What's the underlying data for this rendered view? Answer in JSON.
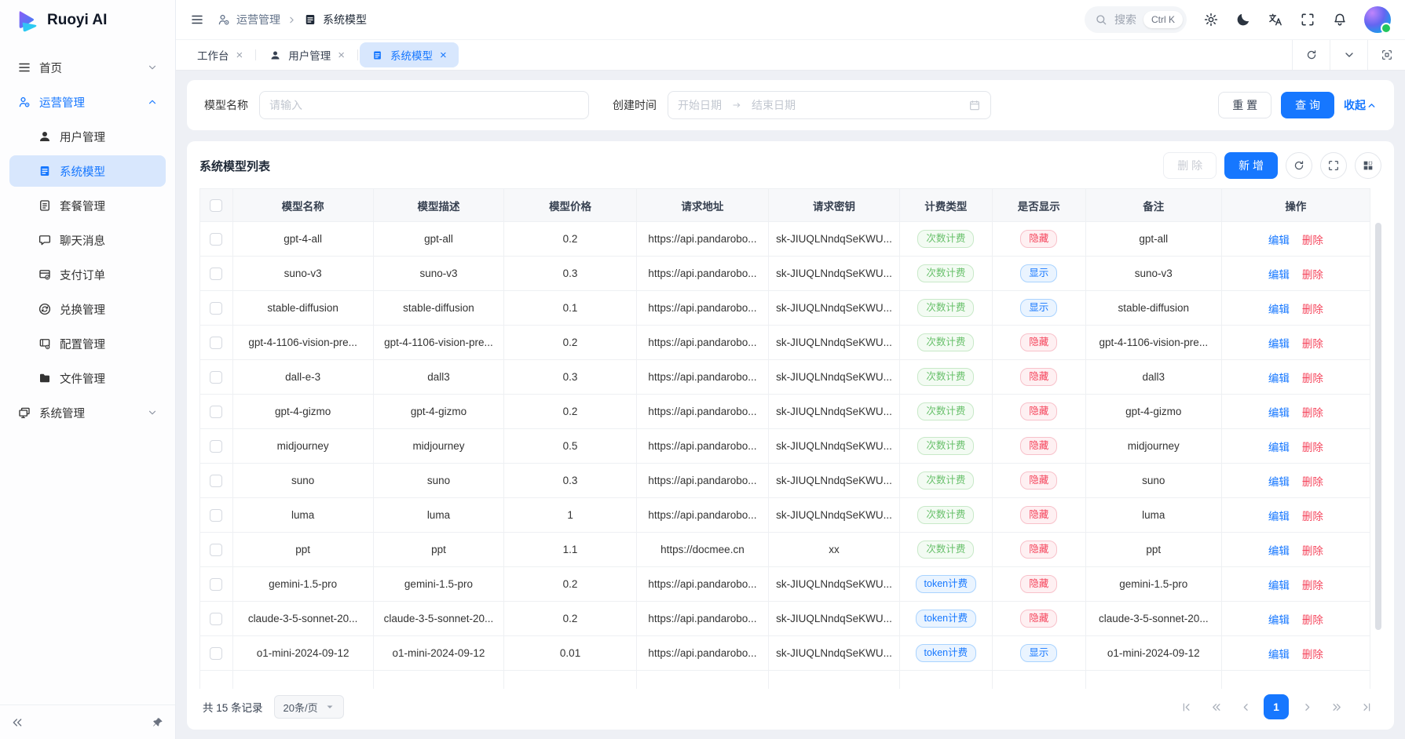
{
  "app": {
    "brand": "Ruoyi AI"
  },
  "colors": {
    "primary": "#1677ff",
    "badge_green": "#67c06a",
    "badge_red": "#f5465d",
    "active_bg": "#d8e7fd"
  },
  "header": {
    "breadcrumb": [
      {
        "icon": "user-gear",
        "label": "运营管理"
      },
      {
        "icon": "doc-fill",
        "label": "系统模型"
      }
    ],
    "search": {
      "placeholder": "搜索",
      "shortcut": "Ctrl K"
    },
    "actions": [
      "gear",
      "moon",
      "translate",
      "expand",
      "bell"
    ]
  },
  "tabs": {
    "items": [
      {
        "label": "工作台",
        "icon": null,
        "active": false
      },
      {
        "label": "用户管理",
        "icon": "person",
        "active": false
      },
      {
        "label": "系统模型",
        "icon": "doc-fill",
        "active": true
      }
    ],
    "close_glyph": "×",
    "controls": [
      "refresh",
      "chev-down",
      "focus"
    ]
  },
  "sidebar": {
    "items": [
      {
        "label": "首页",
        "icon": "hamburger",
        "chevron": "down",
        "children": []
      },
      {
        "label": "运营管理",
        "icon": "user-gear",
        "chevron": "up",
        "open": true,
        "children": [
          {
            "label": "用户管理",
            "icon": "person",
            "active": false
          },
          {
            "label": "系统模型",
            "icon": "doc-fill",
            "active": true
          },
          {
            "label": "套餐管理",
            "icon": "doc-lines",
            "active": false
          },
          {
            "label": "聊天消息",
            "icon": "chat",
            "active": false
          },
          {
            "label": "支付订单",
            "icon": "receipt",
            "active": false
          },
          {
            "label": "兑换管理",
            "icon": "exchange",
            "active": false
          },
          {
            "label": "配置管理",
            "icon": "doc-gear",
            "active": false
          },
          {
            "label": "文件管理",
            "icon": "folder",
            "active": false
          }
        ]
      },
      {
        "label": "系统管理",
        "icon": "monitor",
        "chevron": "down",
        "children": []
      }
    ],
    "footer_icons": [
      "double-left",
      "pin"
    ]
  },
  "filter": {
    "model_name_label": "模型名称",
    "model_name_placeholder": "请输入",
    "create_time_label": "创建时间",
    "start_placeholder": "开始日期",
    "end_placeholder": "结束日期",
    "reset_label": "重 置",
    "search_label": "查 询",
    "collapse_label": "收起"
  },
  "table_card": {
    "title": "系统模型列表",
    "delete_label": "删 除",
    "add_label": "新 增",
    "tool_icons": [
      "refresh",
      "expand",
      "grid"
    ]
  },
  "table": {
    "columns": [
      "模型名称",
      "模型描述",
      "模型价格",
      "请求地址",
      "请求密钥",
      "计费类型",
      "是否显示",
      "备注",
      "操作"
    ],
    "edit_label": "编辑",
    "delete_label": "删除",
    "rows": [
      {
        "name": "gpt-4-all",
        "desc": "gpt-all",
        "price": "0.2",
        "url": "https://api.pandarobo...",
        "key": "sk-JIUQLNndqSeKWU...",
        "billing": "次数计费",
        "billing_type": "count",
        "visible": "隐藏",
        "visible_type": "hidden",
        "remark": "gpt-all"
      },
      {
        "name": "suno-v3",
        "desc": "suno-v3",
        "price": "0.3",
        "url": "https://api.pandarobo...",
        "key": "sk-JIUQLNndqSeKWU...",
        "billing": "次数计费",
        "billing_type": "count",
        "visible": "显示",
        "visible_type": "shown",
        "remark": "suno-v3"
      },
      {
        "name": "stable-diffusion",
        "desc": "stable-diffusion",
        "price": "0.1",
        "url": "https://api.pandarobo...",
        "key": "sk-JIUQLNndqSeKWU...",
        "billing": "次数计费",
        "billing_type": "count",
        "visible": "显示",
        "visible_type": "shown",
        "remark": "stable-diffusion"
      },
      {
        "name": "gpt-4-1106-vision-pre...",
        "desc": "gpt-4-1106-vision-pre...",
        "price": "0.2",
        "url": "https://api.pandarobo...",
        "key": "sk-JIUQLNndqSeKWU...",
        "billing": "次数计费",
        "billing_type": "count",
        "visible": "隐藏",
        "visible_type": "hidden",
        "remark": "gpt-4-1106-vision-pre..."
      },
      {
        "name": "dall-e-3",
        "desc": "dall3",
        "price": "0.3",
        "url": "https://api.pandarobo...",
        "key": "sk-JIUQLNndqSeKWU...",
        "billing": "次数计费",
        "billing_type": "count",
        "visible": "隐藏",
        "visible_type": "hidden",
        "remark": "dall3"
      },
      {
        "name": "gpt-4-gizmo",
        "desc": "gpt-4-gizmo",
        "price": "0.2",
        "url": "https://api.pandarobo...",
        "key": "sk-JIUQLNndqSeKWU...",
        "billing": "次数计费",
        "billing_type": "count",
        "visible": "隐藏",
        "visible_type": "hidden",
        "remark": "gpt-4-gizmo"
      },
      {
        "name": "midjourney",
        "desc": "midjourney",
        "price": "0.5",
        "url": "https://api.pandarobo...",
        "key": "sk-JIUQLNndqSeKWU...",
        "billing": "次数计费",
        "billing_type": "count",
        "visible": "隐藏",
        "visible_type": "hidden",
        "remark": "midjourney"
      },
      {
        "name": "suno",
        "desc": "suno",
        "price": "0.3",
        "url": "https://api.pandarobo...",
        "key": "sk-JIUQLNndqSeKWU...",
        "billing": "次数计费",
        "billing_type": "count",
        "visible": "隐藏",
        "visible_type": "hidden",
        "remark": "suno"
      },
      {
        "name": "luma",
        "desc": "luma",
        "price": "1",
        "url": "https://api.pandarobo...",
        "key": "sk-JIUQLNndqSeKWU...",
        "billing": "次数计费",
        "billing_type": "count",
        "visible": "隐藏",
        "visible_type": "hidden",
        "remark": "luma"
      },
      {
        "name": "ppt",
        "desc": "ppt",
        "price": "1.1",
        "url": "https://docmee.cn",
        "key": "xx",
        "billing": "次数计费",
        "billing_type": "count",
        "visible": "隐藏",
        "visible_type": "hidden",
        "remark": "ppt"
      },
      {
        "name": "gemini-1.5-pro",
        "desc": "gemini-1.5-pro",
        "price": "0.2",
        "url": "https://api.pandarobo...",
        "key": "sk-JIUQLNndqSeKWU...",
        "billing": "token计费",
        "billing_type": "token",
        "visible": "隐藏",
        "visible_type": "hidden",
        "remark": "gemini-1.5-pro"
      },
      {
        "name": "claude-3-5-sonnet-20...",
        "desc": "claude-3-5-sonnet-20...",
        "price": "0.2",
        "url": "https://api.pandarobo...",
        "key": "sk-JIUQLNndqSeKWU...",
        "billing": "token计费",
        "billing_type": "token",
        "visible": "隐藏",
        "visible_type": "hidden",
        "remark": "claude-3-5-sonnet-20..."
      },
      {
        "name": "o1-mini-2024-09-12",
        "desc": "o1-mini-2024-09-12",
        "price": "0.01",
        "url": "https://api.pandarobo...",
        "key": "sk-JIUQLNndqSeKWU...",
        "billing": "token计费",
        "billing_type": "token",
        "visible": "显示",
        "visible_type": "shown",
        "remark": "o1-mini-2024-09-12"
      }
    ]
  },
  "pagination": {
    "total_text": "共 15 条记录",
    "page_size": "20条/页",
    "current_page": "1"
  }
}
